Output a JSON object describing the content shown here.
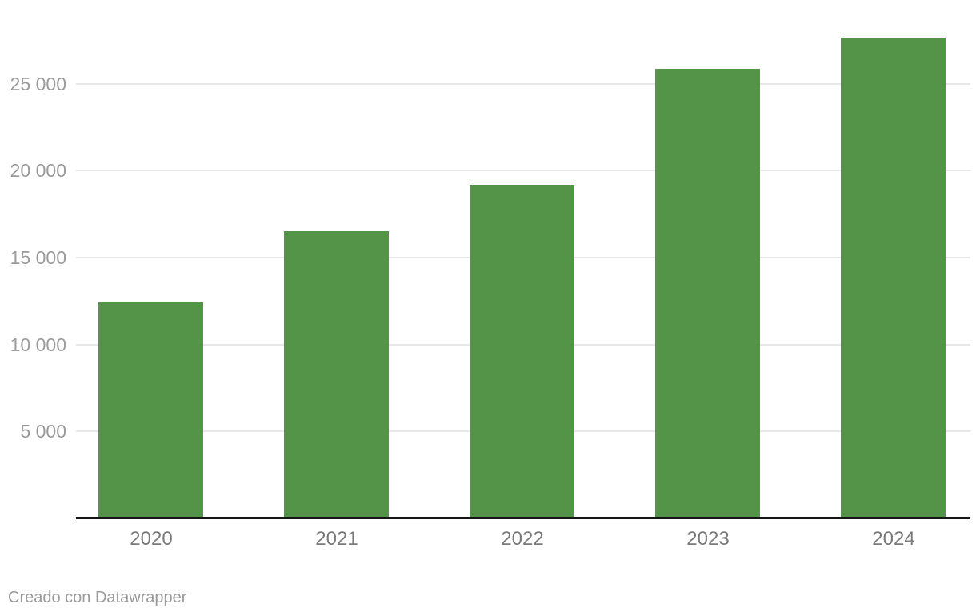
{
  "page": {
    "background": "#ffffff"
  },
  "footer": {
    "attribution": "Creado con Datawrapper"
  },
  "chart_data": {
    "type": "bar",
    "categories": [
      "2020",
      "2021",
      "2022",
      "2023",
      "2024"
    ],
    "values": [
      12360,
      16460,
      19130,
      25810,
      27600
    ],
    "title": "",
    "xlabel": "",
    "ylabel": "",
    "ylim": [
      0,
      28000
    ],
    "yticks": [
      5000,
      10000,
      15000,
      20000,
      25000
    ],
    "ytick_labels": [
      "5 000",
      "10 000",
      "15 000",
      "20 000",
      "25 000"
    ],
    "grid": true,
    "legend": false,
    "colors": {
      "bar": "#549448",
      "gridline": "#e8e8e8",
      "axis_line": "#151515",
      "y_tick_label": "#9b9b9b",
      "x_tick_label": "#7a7a7a",
      "attribution": "#9a9a9a"
    }
  }
}
